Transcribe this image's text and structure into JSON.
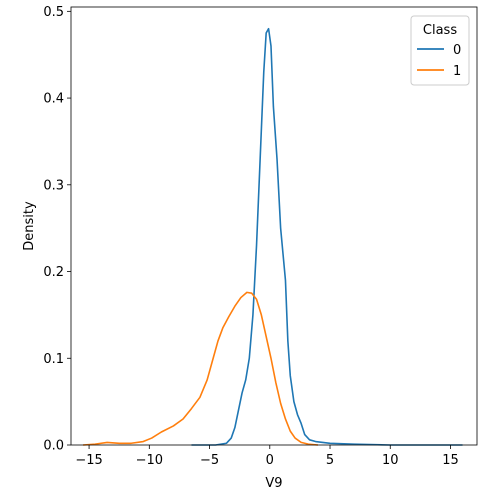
{
  "chart_data": {
    "type": "line",
    "title": "",
    "xlabel": "V9",
    "ylabel": "Density",
    "xlim": [
      -16.5,
      17.2
    ],
    "ylim": [
      0,
      0.505
    ],
    "x_ticks": [
      -15,
      -10,
      -5,
      0,
      5,
      10,
      15
    ],
    "x_tick_labels": [
      "−15",
      "−10",
      "−5",
      "0",
      "5",
      "10",
      "15"
    ],
    "y_ticks": [
      0.0,
      0.1,
      0.2,
      0.3,
      0.4,
      0.5
    ],
    "y_tick_labels": [
      "0.0",
      "0.1",
      "0.2",
      "0.3",
      "0.4",
      "0.5"
    ],
    "grid": false,
    "legend": {
      "title": "Class",
      "placement": "top-right"
    },
    "series": [
      {
        "name": "0",
        "color": "#1f77b4",
        "points": [
          [
            -6.5,
            0.0
          ],
          [
            -4.5,
            0.0
          ],
          [
            -3.6,
            0.002
          ],
          [
            -3.2,
            0.008
          ],
          [
            -2.9,
            0.02
          ],
          [
            -2.6,
            0.04
          ],
          [
            -2.3,
            0.06
          ],
          [
            -2.0,
            0.075
          ],
          [
            -1.7,
            0.1
          ],
          [
            -1.4,
            0.15
          ],
          [
            -1.1,
            0.23
          ],
          [
            -0.8,
            0.33
          ],
          [
            -0.5,
            0.43
          ],
          [
            -0.3,
            0.475
          ],
          [
            -0.1,
            0.48
          ],
          [
            0.1,
            0.46
          ],
          [
            0.3,
            0.39
          ],
          [
            0.6,
            0.33
          ],
          [
            0.9,
            0.25
          ],
          [
            1.1,
            0.22
          ],
          [
            1.3,
            0.19
          ],
          [
            1.5,
            0.12
          ],
          [
            1.7,
            0.08
          ],
          [
            2.0,
            0.05
          ],
          [
            2.3,
            0.035
          ],
          [
            2.6,
            0.025
          ],
          [
            2.9,
            0.012
          ],
          [
            3.3,
            0.006
          ],
          [
            3.8,
            0.004
          ],
          [
            5.0,
            0.002
          ],
          [
            7.0,
            0.001
          ],
          [
            10.0,
            0.0
          ],
          [
            16.0,
            0.0
          ]
        ]
      },
      {
        "name": "1",
        "color": "#ff7f0e",
        "points": [
          [
            -15.5,
            0.0
          ],
          [
            -14.5,
            0.001
          ],
          [
            -13.5,
            0.003
          ],
          [
            -12.5,
            0.002
          ],
          [
            -11.5,
            0.002
          ],
          [
            -10.5,
            0.004
          ],
          [
            -9.8,
            0.008
          ],
          [
            -9.0,
            0.015
          ],
          [
            -8.0,
            0.022
          ],
          [
            -7.2,
            0.03
          ],
          [
            -6.5,
            0.042
          ],
          [
            -5.8,
            0.055
          ],
          [
            -5.2,
            0.075
          ],
          [
            -4.7,
            0.1
          ],
          [
            -4.3,
            0.12
          ],
          [
            -3.9,
            0.135
          ],
          [
            -3.4,
            0.148
          ],
          [
            -2.9,
            0.16
          ],
          [
            -2.4,
            0.17
          ],
          [
            -1.9,
            0.176
          ],
          [
            -1.5,
            0.175
          ],
          [
            -1.1,
            0.168
          ],
          [
            -0.7,
            0.15
          ],
          [
            -0.3,
            0.125
          ],
          [
            0.1,
            0.1
          ],
          [
            0.5,
            0.072
          ],
          [
            0.9,
            0.048
          ],
          [
            1.3,
            0.03
          ],
          [
            1.7,
            0.016
          ],
          [
            2.1,
            0.008
          ],
          [
            2.6,
            0.003
          ],
          [
            3.2,
            0.001
          ],
          [
            4.0,
            0.0
          ]
        ]
      }
    ]
  }
}
